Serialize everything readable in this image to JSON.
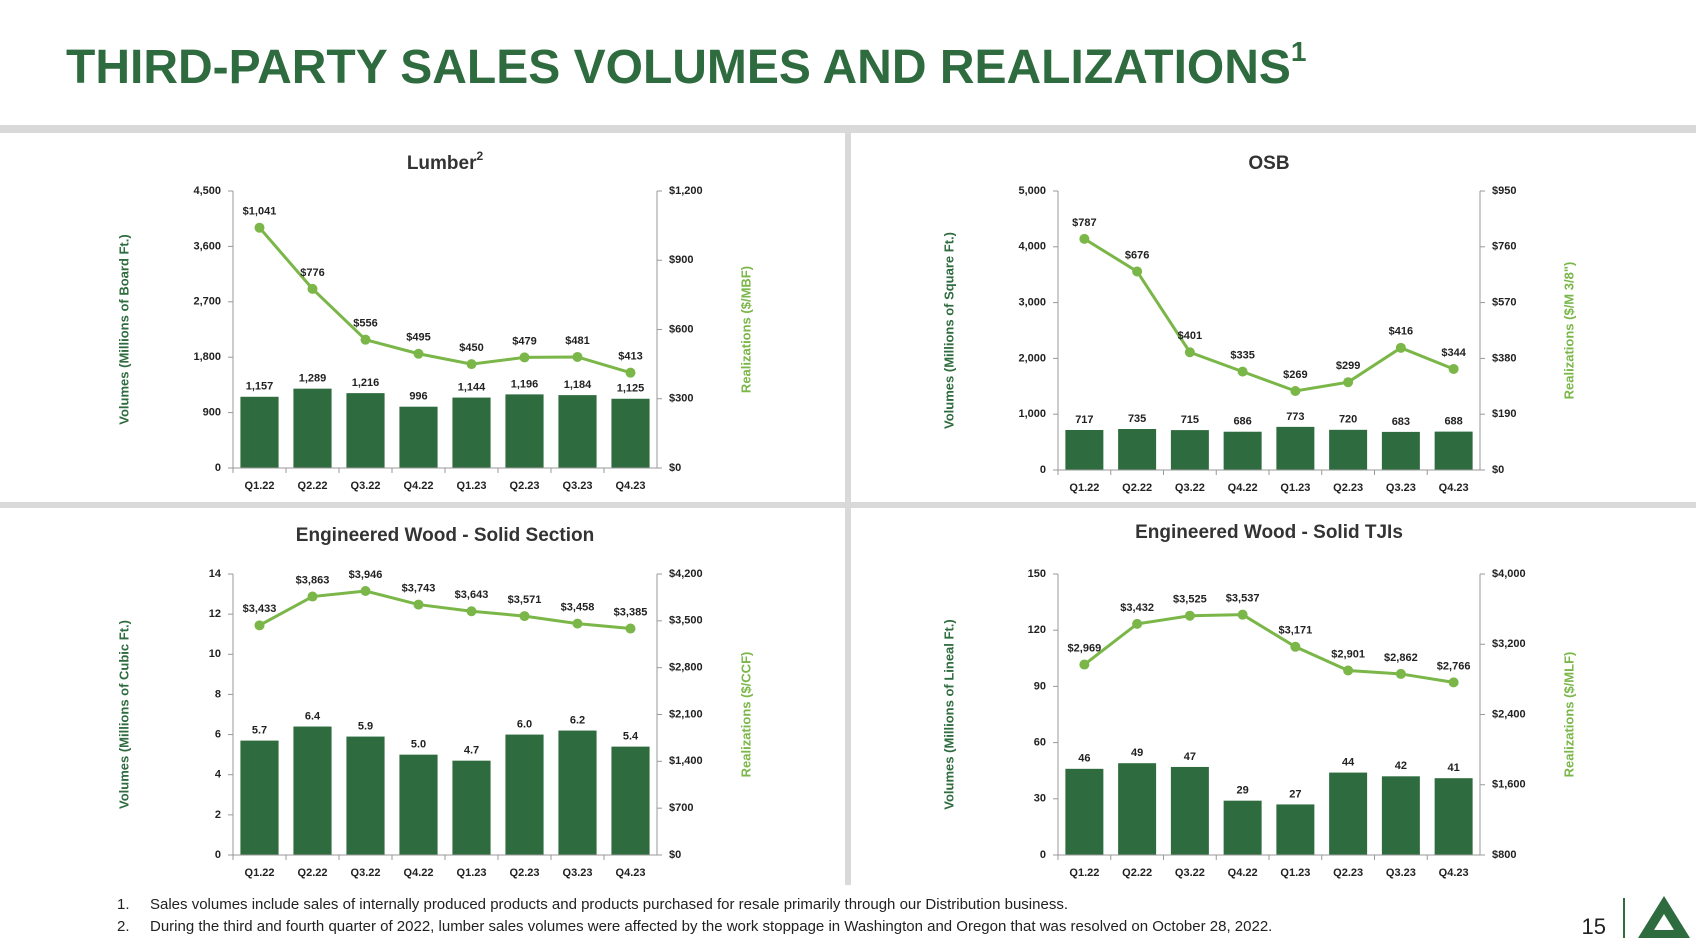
{
  "header": {
    "title": "THIRD-PARTY SALES VOLUMES AND REALIZATIONS",
    "title_sup": "1"
  },
  "footnotes": [
    {
      "marker": "1.",
      "text": "Sales volumes include sales of internally produced products and products purchased for resale primarily through our Distribution business."
    },
    {
      "marker": "2.",
      "text": "During the third and fourth quarter of 2022, lumber sales volumes were affected by the work stoppage in Washington and Oregon that was resolved on October 28, 2022."
    }
  ],
  "page_number": "15",
  "chart_data": [
    {
      "type": "bar-line",
      "title": "Lumber",
      "title_sup": "2",
      "y_label": "Volumes (Millions of Board Ft.)",
      "y2_label": "Realizations ($/MBF)",
      "categories": [
        "Q1.22",
        "Q2.22",
        "Q3.22",
        "Q4.22",
        "Q1.23",
        "Q2.23",
        "Q3.23",
        "Q4.23"
      ],
      "series": [
        {
          "type": "bar",
          "color": "#2e6b3f",
          "values": [
            1157,
            1289,
            1216,
            996,
            1144,
            1196,
            1184,
            1125
          ],
          "value_labels": [
            "1,157",
            "1,289",
            "1,216",
            "996",
            "1,144",
            "1,196",
            "1,184",
            "1,125"
          ]
        },
        {
          "type": "line",
          "axis": "y2",
          "color": "#7ab648",
          "values": [
            1041,
            776,
            556,
            495,
            450,
            479,
            481,
            413
          ],
          "value_labels": [
            "$1,041",
            "$776",
            "$556",
            "$495",
            "$450",
            "$479",
            "$481",
            "$413"
          ]
        }
      ],
      "ylim": [
        0,
        4500
      ],
      "yticks": [
        0,
        900,
        {
          "value": 1800,
          "label": "1,800"
        },
        {
          "value": 2700,
          "label": "2,700"
        },
        {
          "value": 3600,
          "label": "3,600"
        },
        {
          "value": 4500,
          "label": "4,500"
        }
      ],
      "y2lim": [
        0,
        1200
      ],
      "y2ticks": [
        {
          "value": 0,
          "label": "$0"
        },
        {
          "value": 300,
          "label": "$300"
        },
        {
          "value": 600,
          "label": "$600"
        },
        {
          "value": 900,
          "label": "$900"
        },
        {
          "value": 1200,
          "label": "$1,200"
        }
      ]
    },
    {
      "type": "bar-line",
      "title": "OSB",
      "y_label": "Volumes (Millions of Square Ft.)",
      "y2_label": "Realizations ($/M 3/8\")",
      "categories": [
        "Q1.22",
        "Q2.22",
        "Q3.22",
        "Q4.22",
        "Q1.23",
        "Q2.23",
        "Q3.23",
        "Q4.23"
      ],
      "series": [
        {
          "type": "bar",
          "color": "#2e6b3f",
          "values": [
            717,
            735,
            715,
            686,
            773,
            720,
            683,
            688
          ]
        },
        {
          "type": "line",
          "axis": "y2",
          "color": "#7ab648",
          "values": [
            787,
            676,
            401,
            335,
            269,
            299,
            416,
            344
          ],
          "value_labels": [
            "$787",
            "$676",
            "$401",
            "$335",
            "$269",
            "$299",
            "$416",
            "$344"
          ]
        }
      ],
      "ylim": [
        0,
        5000
      ],
      "yticks": [
        0,
        {
          "value": 1000,
          "label": "1,000"
        },
        {
          "value": 2000,
          "label": "2,000"
        },
        {
          "value": 3000,
          "label": "3,000"
        },
        {
          "value": 4000,
          "label": "4,000"
        },
        {
          "value": 5000,
          "label": "5,000"
        }
      ],
      "y2lim": [
        0,
        950
      ],
      "y2ticks": [
        {
          "value": 0,
          "label": "$0"
        },
        {
          "value": 190,
          "label": "$190"
        },
        {
          "value": 380,
          "label": "$380"
        },
        {
          "value": 570,
          "label": "$570"
        },
        {
          "value": 760,
          "label": "$760"
        },
        {
          "value": 950,
          "label": "$950"
        }
      ]
    },
    {
      "type": "bar-line",
      "title": "Engineered Wood - Solid Section",
      "y_label": "Volumes (Millions of Cubic Ft.)",
      "y2_label": "Realizations ($/CCF)",
      "categories": [
        "Q1.22",
        "Q2.22",
        "Q3.22",
        "Q4.22",
        "Q1.23",
        "Q2.23",
        "Q3.23",
        "Q4.23"
      ],
      "series": [
        {
          "type": "bar",
          "color": "#2e6b3f",
          "values": [
            5.7,
            6.4,
            5.9,
            5.0,
            4.7,
            6.0,
            6.2,
            5.4
          ],
          "value_labels": [
            "5.7",
            "6.4",
            "5.9",
            "5.0",
            "4.7",
            "6.0",
            "6.2",
            "5.4"
          ]
        },
        {
          "type": "line",
          "axis": "y2",
          "color": "#7ab648",
          "values": [
            3433,
            3863,
            3946,
            3743,
            3643,
            3571,
            3458,
            3385
          ],
          "value_labels": [
            "$3,433",
            "$3,863",
            "$3,946",
            "$3,743",
            "$3,643",
            "$3,571",
            "$3,458",
            "$3,385"
          ]
        }
      ],
      "ylim": [
        0,
        14
      ],
      "yticks": [
        0,
        2,
        4,
        6,
        8,
        10,
        12,
        14
      ],
      "y2lim": [
        0,
        4200
      ],
      "y2ticks": [
        {
          "value": 0,
          "label": "$0"
        },
        {
          "value": 700,
          "label": "$700"
        },
        {
          "value": 1400,
          "label": "$1,400"
        },
        {
          "value": 2100,
          "label": "$2,100"
        },
        {
          "value": 2800,
          "label": "$2,800"
        },
        {
          "value": 3500,
          "label": "$3,500"
        },
        {
          "value": 4200,
          "label": "$4,200"
        }
      ]
    },
    {
      "type": "bar-line",
      "title": "Engineered Wood - Solid TJIs",
      "y_label": "Volumes (Millions of Lineal Ft.)",
      "y2_label": "Realizations ($/MLF)",
      "categories": [
        "Q1.22",
        "Q2.22",
        "Q3.22",
        "Q4.22",
        "Q1.23",
        "Q2.23",
        "Q3.23",
        "Q4.23"
      ],
      "series": [
        {
          "type": "bar",
          "color": "#2e6b3f",
          "values": [
            46,
            49,
            47,
            29,
            27,
            44,
            42,
            41
          ]
        },
        {
          "type": "line",
          "axis": "y2",
          "color": "#7ab648",
          "values": [
            2969,
            3432,
            3525,
            3537,
            3171,
            2901,
            2862,
            2766
          ],
          "value_labels": [
            "$2,969",
            "$3,432",
            "$3,525",
            "$3,537",
            "$3,171",
            "$2,901",
            "$2,862",
            "$2,766"
          ]
        }
      ],
      "ylim": [
        0,
        150
      ],
      "yticks": [
        0,
        30,
        60,
        90,
        120,
        150
      ],
      "y2lim": [
        800,
        4000
      ],
      "y2ticks": [
        {
          "value": 800,
          "label": "$800"
        },
        {
          "value": 1600,
          "label": "$1,600"
        },
        {
          "value": 2400,
          "label": "$2,400"
        },
        {
          "value": 3200,
          "label": "$3,200"
        },
        {
          "value": 4000,
          "label": "$4,000"
        }
      ]
    }
  ]
}
